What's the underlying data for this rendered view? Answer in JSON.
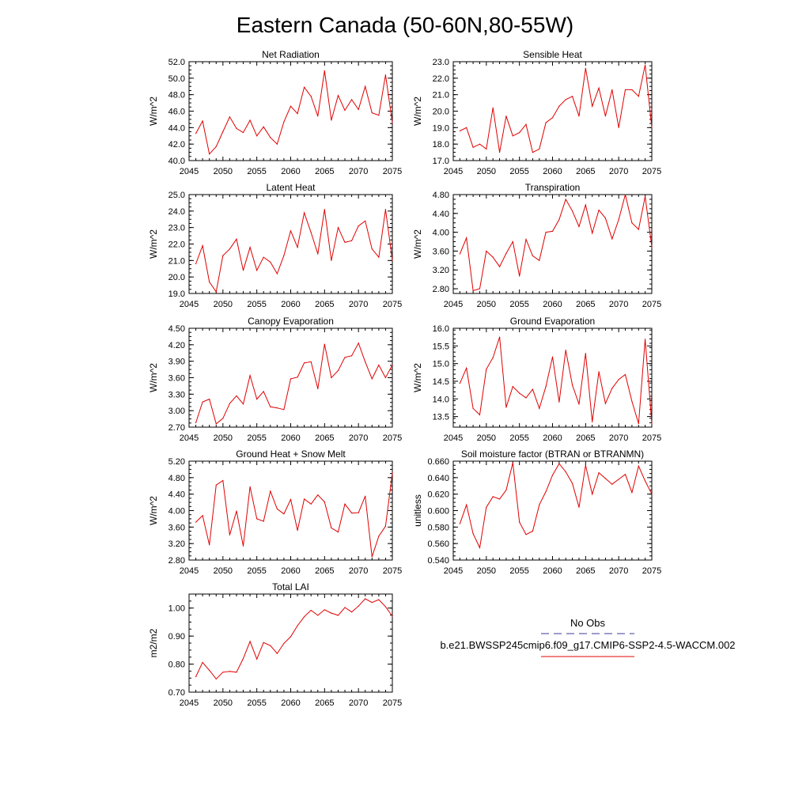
{
  "title": "Eastern Canada (50-60N,80-55W)",
  "legend": {
    "obs_label": "No Obs",
    "obs_color": "#3a3a9a",
    "model_label": "b.e21.BWSSP245cmip6.f09_g17.CMIP6-SSP2-4.5-WACCM.002",
    "model_color": "#e00000"
  },
  "series_color": "#e00000",
  "chart_data": [
    {
      "type": "line",
      "title": "Net Radiation",
      "ylabel": "W/m^2",
      "xlim": [
        2045,
        2075
      ],
      "ylim": [
        40.0,
        52.0
      ],
      "xticks": [
        "2045",
        "2050",
        "2055",
        "2060",
        "2065",
        "2070",
        "2075"
      ],
      "yticks": [
        "40.0",
        "42.0",
        "44.0",
        "46.0",
        "48.0",
        "50.0",
        "52.0"
      ],
      "x_start": 2046,
      "values": [
        43.3,
        44.8,
        40.8,
        41.7,
        43.5,
        45.3,
        43.9,
        43.4,
        44.9,
        43.0,
        44.1,
        42.8,
        42.0,
        44.7,
        46.6,
        45.7,
        48.9,
        47.8,
        45.4,
        50.9,
        44.9,
        47.9,
        46.1,
        47.4,
        46.2,
        49.0,
        45.8,
        45.5,
        50.4,
        44.6
      ]
    },
    {
      "type": "line",
      "title": "Sensible Heat",
      "ylabel": "W/m^2",
      "xlim": [
        2045,
        2075
      ],
      "ylim": [
        17.0,
        23.0
      ],
      "xticks": [
        "2045",
        "2050",
        "2055",
        "2060",
        "2065",
        "2070",
        "2075"
      ],
      "yticks": [
        "17.0",
        "18.0",
        "19.0",
        "20.0",
        "21.0",
        "22.0",
        "23.0"
      ],
      "x_start": 2046,
      "values": [
        18.8,
        19.0,
        17.8,
        18.0,
        17.7,
        20.2,
        17.5,
        19.7,
        18.5,
        18.7,
        19.2,
        17.5,
        17.7,
        19.3,
        19.6,
        20.3,
        20.7,
        20.9,
        19.7,
        22.6,
        20.3,
        21.4,
        19.7,
        21.3,
        19.0,
        21.3,
        21.3,
        20.9,
        22.8,
        19.0
      ]
    },
    {
      "type": "line",
      "title": "Latent Heat",
      "ylabel": "W/m^2",
      "xlim": [
        2045,
        2075
      ],
      "ylim": [
        19.0,
        25.0
      ],
      "xticks": [
        "2045",
        "2050",
        "2055",
        "2060",
        "2065",
        "2070",
        "2075"
      ],
      "yticks": [
        "19.0",
        "20.0",
        "21.0",
        "22.0",
        "23.0",
        "24.0",
        "25.0"
      ],
      "x_start": 2046,
      "values": [
        20.8,
        21.9,
        19.7,
        19.1,
        21.3,
        21.7,
        22.3,
        20.4,
        21.8,
        20.4,
        21.2,
        20.9,
        20.2,
        21.3,
        22.8,
        21.8,
        23.9,
        22.7,
        21.4,
        24.1,
        21.0,
        23.0,
        22.1,
        22.2,
        23.1,
        23.4,
        21.7,
        21.2,
        24.1,
        21.0
      ]
    },
    {
      "type": "line",
      "title": "Transpiration",
      "ylabel": "W/m^2",
      "xlim": [
        2045,
        2075
      ],
      "ylim": [
        2.7,
        4.8
      ],
      "xticks": [
        "2045",
        "2050",
        "2055",
        "2060",
        "2065",
        "2070",
        "2075"
      ],
      "yticks": [
        "2.80",
        "3.20",
        "3.60",
        "4.00",
        "4.40",
        "4.80"
      ],
      "x_start": 2046,
      "values": [
        3.54,
        3.88,
        2.76,
        2.8,
        3.6,
        3.47,
        3.27,
        3.55,
        3.8,
        3.07,
        3.85,
        3.5,
        3.4,
        4.0,
        4.02,
        4.27,
        4.7,
        4.45,
        4.12,
        4.58,
        3.98,
        4.47,
        4.3,
        3.86,
        4.27,
        4.8,
        4.2,
        4.06,
        4.76,
        3.69
      ]
    },
    {
      "type": "line",
      "title": "Canopy Evaporation",
      "ylabel": "W/m^2",
      "xlim": [
        2045,
        2075
      ],
      "ylim": [
        2.7,
        4.5
      ],
      "xticks": [
        "2045",
        "2050",
        "2055",
        "2060",
        "2065",
        "2070",
        "2075"
      ],
      "yticks": [
        "2.70",
        "3.00",
        "3.30",
        "3.60",
        "3.90",
        "4.20",
        "4.50"
      ],
      "x_start": 2046,
      "values": [
        2.78,
        3.16,
        3.21,
        2.76,
        2.86,
        3.13,
        3.27,
        3.12,
        3.64,
        3.21,
        3.35,
        3.07,
        3.05,
        3.02,
        3.58,
        3.61,
        3.87,
        3.89,
        3.4,
        4.21,
        3.6,
        3.73,
        3.97,
        4.0,
        4.23,
        3.89,
        3.58,
        3.83,
        3.6,
        3.83
      ]
    },
    {
      "type": "line",
      "title": "Ground Evaporation",
      "ylabel": "W/m^2",
      "xlim": [
        2045,
        2075
      ],
      "ylim": [
        13.2,
        16.0
      ],
      "xticks": [
        "2045",
        "2050",
        "2055",
        "2060",
        "2065",
        "2070",
        "2075"
      ],
      "yticks": [
        "13.5",
        "14.0",
        "14.5",
        "15.0",
        "15.5",
        "16.0"
      ],
      "x_start": 2046,
      "values": [
        14.44,
        14.87,
        13.73,
        13.55,
        14.84,
        15.17,
        15.75,
        13.76,
        14.35,
        14.16,
        14.03,
        14.27,
        13.73,
        14.35,
        15.19,
        13.91,
        15.38,
        14.39,
        13.85,
        15.29,
        13.35,
        14.77,
        13.87,
        14.3,
        14.55,
        14.69,
        13.93,
        13.3,
        15.69,
        13.3
      ]
    },
    {
      "type": "line",
      "title": "Ground Heat + Snow Melt",
      "ylabel": "W/m^2",
      "xlim": [
        2045,
        2075
      ],
      "ylim": [
        2.8,
        5.2
      ],
      "xticks": [
        "2045",
        "2050",
        "2055",
        "2060",
        "2065",
        "2070",
        "2075"
      ],
      "yticks": [
        "2.80",
        "3.20",
        "3.60",
        "4.00",
        "4.40",
        "4.80",
        "5.20"
      ],
      "x_start": 2046,
      "values": [
        3.72,
        3.88,
        3.17,
        4.62,
        4.73,
        3.41,
        3.99,
        3.14,
        4.58,
        3.8,
        3.74,
        4.47,
        4.04,
        3.92,
        4.27,
        3.52,
        4.28,
        4.16,
        4.38,
        4.21,
        3.58,
        3.48,
        4.16,
        3.94,
        3.95,
        4.35,
        2.88,
        3.38,
        3.62,
        4.91
      ]
    },
    {
      "type": "line",
      "title": "Soil moisture factor (BTRAN or BTRANMN)",
      "ylabel": "unitless",
      "xlim": [
        2045,
        2075
      ],
      "ylim": [
        0.54,
        0.66
      ],
      "xticks": [
        "2045",
        "2050",
        "2055",
        "2060",
        "2065",
        "2070",
        "2075"
      ],
      "yticks": [
        "0.540",
        "0.560",
        "0.580",
        "0.600",
        "0.620",
        "0.640",
        "0.660"
      ],
      "x_start": 2046,
      "values": [
        0.584,
        0.607,
        0.572,
        0.555,
        0.604,
        0.617,
        0.614,
        0.625,
        0.658,
        0.586,
        0.571,
        0.575,
        0.607,
        0.623,
        0.643,
        0.657,
        0.647,
        0.633,
        0.604,
        0.655,
        0.62,
        0.646,
        0.639,
        0.632,
        0.638,
        0.644,
        0.622,
        0.654,
        0.636,
        0.62
      ]
    },
    {
      "type": "line",
      "title": "Total LAI",
      "ylabel": "m2/m2",
      "xlim": [
        2045,
        2075
      ],
      "ylim": [
        0.7,
        1.05
      ],
      "xticks": [
        "2045",
        "2050",
        "2055",
        "2060",
        "2065",
        "2070",
        "2075"
      ],
      "yticks": [
        "0.70",
        "0.80",
        "0.90",
        "1.00"
      ],
      "x_start": 2046,
      "values": [
        0.755,
        0.806,
        0.778,
        0.747,
        0.771,
        0.774,
        0.771,
        0.82,
        0.881,
        0.818,
        0.877,
        0.866,
        0.838,
        0.874,
        0.898,
        0.937,
        0.969,
        0.992,
        0.974,
        0.994,
        0.982,
        0.974,
        1.002,
        0.986,
        1.007,
        1.033,
        1.02,
        1.03,
        1.005,
        0.971
      ]
    }
  ]
}
